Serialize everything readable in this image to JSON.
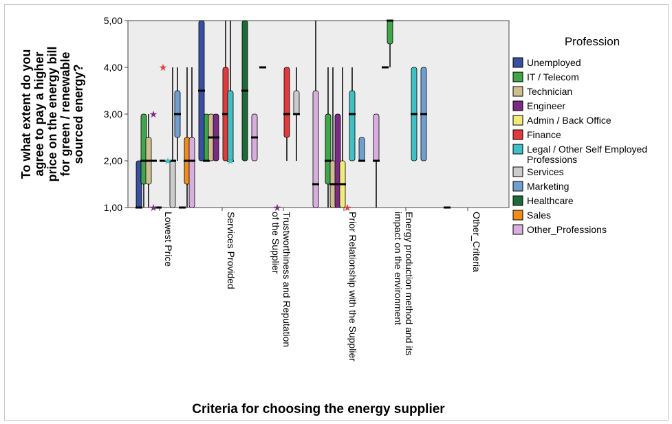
{
  "chart_data": {
    "type": "boxplot",
    "xlabel": "Criteria for choosing the energy supplier",
    "ylabel_lines": [
      "To what extent do you",
      "agree to pay a higher",
      "price on the energy bill",
      "for green / renewable",
      "sourced energy?"
    ],
    "ylim": [
      1,
      5
    ],
    "y_ticks": [
      "1,00",
      "2,00",
      "3,00",
      "4,00",
      "5,00"
    ],
    "grid": false,
    "legend_title": "Profession",
    "legend_position": "right",
    "categories": [
      "Lowest Price",
      "Services Provided",
      "Trustworthiness and Reputation of the Supplier",
      "Prior Relationship with the Supplier",
      "Energy production method and its impact on the environment",
      "Other_Criteria"
    ],
    "category_label_lines": [
      [
        "Lowest Price"
      ],
      [
        "Services Provided"
      ],
      [
        "Trustworthiness and Reputation",
        "of the Supplier"
      ],
      [
        "Prior Relationship with the Supplier"
      ],
      [
        "Energy production method and its",
        "impact on the environment"
      ],
      [
        "Other_Criteria"
      ]
    ],
    "series": [
      {
        "name": "Unemployed",
        "color": "#3a4fa0"
      },
      {
        "name": "IT / Telecom",
        "color": "#3fa64a"
      },
      {
        "name": "Technician",
        "color": "#cdbf92"
      },
      {
        "name": "Engineer",
        "color": "#7b2b83"
      },
      {
        "name": "Admin / Back Office",
        "color": "#f1ec7a"
      },
      {
        "name": "Finance",
        "color": "#e23a3a"
      },
      {
        "name": "Legal / Other Self Employed Professions",
        "color": "#40c0c4"
      },
      {
        "name": "Services",
        "color": "#cccccc"
      },
      {
        "name": "Marketing",
        "color": "#6f9fd0"
      },
      {
        "name": "Healthcare",
        "color": "#1d6b3a"
      },
      {
        "name": "Sales",
        "color": "#f08c1a"
      },
      {
        "name": "Other_Professions",
        "color": "#d8aede"
      }
    ],
    "boxes": [
      {
        "category": 0,
        "series": 0,
        "min": 1,
        "q1": 1,
        "median": 1,
        "q3": 2,
        "max": 2
      },
      {
        "category": 0,
        "series": 1,
        "min": 1,
        "q1": 1.5,
        "median": 2,
        "q3": 3,
        "max": 3
      },
      {
        "category": 0,
        "series": 2,
        "min": 1,
        "q1": 1.5,
        "median": 2,
        "q3": 2.5,
        "max": 3
      },
      {
        "category": 0,
        "series": 3,
        "min": 2,
        "q1": 2,
        "median": 2,
        "q3": 2,
        "max": 2
      },
      {
        "category": 0,
        "series": 4,
        "min": 1,
        "q1": 1,
        "median": 1,
        "q3": 1,
        "max": 1
      },
      {
        "category": 0,
        "series": 5,
        "min": 2,
        "q1": 2,
        "median": 2,
        "q3": 2,
        "max": 2
      },
      {
        "category": 0,
        "series": 7,
        "min": 1,
        "q1": 1,
        "median": 2,
        "q3": 2,
        "max": 4
      },
      {
        "category": 0,
        "series": 8,
        "min": 2,
        "q1": 2.5,
        "median": 3,
        "q3": 3.5,
        "max": 4
      },
      {
        "category": 0,
        "series": 9,
        "min": 1,
        "q1": 1,
        "median": 1,
        "q3": 1,
        "max": 1
      },
      {
        "category": 0,
        "series": 10,
        "min": 1,
        "q1": 1.5,
        "median": 2,
        "q3": 2.5,
        "max": 4
      },
      {
        "category": 0,
        "series": 11,
        "min": 1,
        "q1": 1,
        "median": 2,
        "q3": 2.5,
        "max": 4
      },
      {
        "category": 1,
        "series": 1,
        "min": 2,
        "q1": 2,
        "median": 2,
        "q3": 3,
        "max": 3
      },
      {
        "category": 1,
        "series": 2,
        "min": 2,
        "q1": 2,
        "median": 2.5,
        "q3": 3,
        "max": 3
      },
      {
        "category": 1,
        "series": 3,
        "min": 2,
        "q1": 2,
        "median": 2.5,
        "q3": 3,
        "max": 3
      },
      {
        "category": 1,
        "series": 5,
        "min": 2,
        "q1": 2,
        "median": 3,
        "q3": 4,
        "max": 5
      },
      {
        "category": 1,
        "series": 6,
        "min": 2,
        "q1": 2,
        "median": 2,
        "q3": 3.5,
        "max": 5
      },
      {
        "category": 1,
        "series": 9,
        "min": 2,
        "q1": 2,
        "median": 3.5,
        "q3": 5,
        "max": 5
      },
      {
        "category": 1,
        "series": 0,
        "min": 2,
        "q1": 2,
        "median": 3.5,
        "q3": 5,
        "max": 5
      },
      {
        "category": 1,
        "series": 11,
        "min": 2,
        "q1": 2,
        "median": 2.5,
        "q3": 3,
        "max": 3
      },
      {
        "category": 2,
        "series": 5,
        "min": 2,
        "q1": 2.5,
        "median": 3,
        "q3": 4,
        "max": 4
      },
      {
        "category": 2,
        "series": 7,
        "min": 2,
        "q1": 3,
        "median": 3,
        "q3": 3.5,
        "max": 4
      },
      {
        "category": 2,
        "series": 0,
        "min": 4,
        "q1": 4,
        "median": 4,
        "q3": 4,
        "max": 4
      },
      {
        "category": 2,
        "series": 11,
        "min": 1,
        "q1": 1,
        "median": 1.5,
        "q3": 3.5,
        "max": 5
      },
      {
        "category": 3,
        "series": 1,
        "min": 1,
        "q1": 1.5,
        "median": 2,
        "q3": 3,
        "max": 4
      },
      {
        "category": 3,
        "series": 2,
        "min": 1,
        "q1": 1,
        "median": 1.5,
        "q3": 2,
        "max": 4
      },
      {
        "category": 3,
        "series": 3,
        "min": 1,
        "q1": 1,
        "median": 1.5,
        "q3": 3,
        "max": 3
      },
      {
        "category": 3,
        "series": 4,
        "min": 1,
        "q1": 1,
        "median": 1.5,
        "q3": 2,
        "max": 4
      },
      {
        "category": 3,
        "series": 6,
        "min": 2,
        "q1": 2,
        "median": 3,
        "q3": 3.5,
        "max": 4
      },
      {
        "category": 3,
        "series": 8,
        "min": 2,
        "q1": 2,
        "median": 2,
        "q3": 2.5,
        "max": 2.5
      },
      {
        "category": 3,
        "series": 11,
        "min": 1,
        "q1": 2,
        "median": 2,
        "q3": 3,
        "max": 3
      },
      {
        "category": 4,
        "series": 1,
        "min": 4,
        "q1": 4.5,
        "median": 5,
        "q3": 5,
        "max": 5
      },
      {
        "category": 4,
        "series": 6,
        "min": 2,
        "q1": 2,
        "median": 3,
        "q3": 4,
        "max": 4
      },
      {
        "category": 4,
        "series": 8,
        "min": 2,
        "q1": 2,
        "median": 3,
        "q3": 4,
        "max": 4
      },
      {
        "category": 4,
        "series": 0,
        "min": 4,
        "q1": 4,
        "median": 4,
        "q3": 4,
        "max": 4
      },
      {
        "category": 5,
        "series": 0,
        "min": 1,
        "q1": 1,
        "median": 1,
        "q3": 1,
        "max": 1
      }
    ],
    "outliers": [
      {
        "category": 0,
        "series": 3,
        "value": 3,
        "marker": "star"
      },
      {
        "category": 0,
        "series": 5,
        "value": 4,
        "marker": "star"
      },
      {
        "category": 0,
        "series": 3,
        "value": 1,
        "marker": "star"
      },
      {
        "category": 0,
        "series": 6,
        "value": 2,
        "marker": "star"
      },
      {
        "category": 1,
        "series": 6,
        "value": 2,
        "marker": "star"
      },
      {
        "category": 2,
        "series": 3,
        "value": 1,
        "marker": "star"
      },
      {
        "category": 3,
        "series": 5,
        "value": 1,
        "marker": "star"
      }
    ]
  }
}
